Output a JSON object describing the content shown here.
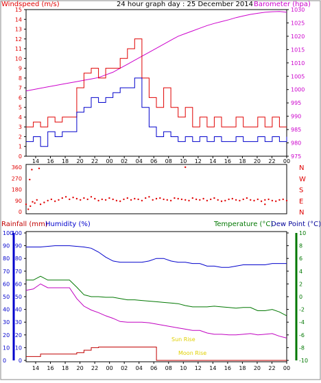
{
  "colors": {
    "wind": "#e00000",
    "gust_low": "#0000cc",
    "baro": "#cc00cc",
    "rain": "#c00000",
    "humidity": "#c000c0",
    "temperature": "#007700",
    "dewpoint": "#000099",
    "sun_moon": "#e0d000",
    "axis_left_top": "#e00000",
    "axis_right_top": "#cc00cc",
    "axis_left_bottom": "#0000cc",
    "axis_right_bottom": "#007700"
  },
  "chart_data": [
    {
      "type": "line",
      "panel": "wind-barometer",
      "title": "24 hour graph day : 25 December 2014",
      "ylabel_left": "Windspeed (m/s)",
      "ylabel_right": "Barometer (hpa)",
      "y_left_ticks": [
        "0",
        "1",
        "2",
        "3",
        "4",
        "5",
        "6",
        "7",
        "8",
        "9",
        "10",
        "11",
        "12",
        "13",
        "14",
        "15"
      ],
      "y_right_ticks": [
        "975",
        "980",
        "985",
        "990",
        "995",
        "1000",
        "1005",
        "1010",
        "1015",
        "1020",
        "1025",
        "1030"
      ],
      "x_ticks": [
        "14",
        "16",
        "18",
        "20",
        "22",
        "00",
        "02",
        "04",
        "06",
        "08",
        "10",
        "12",
        "14",
        "16",
        "18",
        "20",
        "22",
        "00"
      ],
      "ylim_left": [
        0,
        15
      ],
      "ylim_right": [
        975,
        1030
      ],
      "series": [
        {
          "name": "Barometer",
          "axis": "right",
          "x": [
            0,
            1,
            2,
            3,
            4,
            5,
            6,
            7,
            8,
            9,
            10,
            11,
            12,
            13,
            14,
            15,
            16,
            17,
            18,
            19,
            20,
            21,
            22,
            23,
            24,
            25,
            26,
            27,
            28,
            29,
            30,
            31,
            32,
            33,
            34,
            35,
            36
          ],
          "values": [
            999.5,
            1000,
            1000.5,
            1001,
            1001.5,
            1002,
            1002.5,
            1003,
            1003.5,
            1004,
            1004.5,
            1005.5,
            1006.5,
            1008,
            1009.5,
            1011,
            1012.5,
            1014,
            1015.5,
            1017,
            1018.5,
            1020,
            1021,
            1022,
            1023,
            1024,
            1024.8,
            1025.5,
            1026.2,
            1027,
            1027.6,
            1028.2,
            1028.6,
            1029,
            1029.2,
            1029.3,
            1029
          ]
        },
        {
          "name": "Wind gust",
          "axis": "left",
          "x": [
            0,
            1,
            2,
            3,
            4,
            5,
            6,
            7,
            8,
            9,
            10,
            11,
            12,
            13,
            14,
            15,
            16,
            17,
            18,
            19,
            20,
            21,
            22,
            23,
            24,
            25,
            26,
            27,
            28,
            29,
            30,
            31,
            32,
            33,
            34,
            35,
            36
          ],
          "values": [
            3,
            3.5,
            3,
            4,
            3.5,
            4,
            4,
            7,
            8.5,
            9,
            8,
            9,
            9,
            10,
            11,
            12,
            8,
            6,
            5,
            7,
            5,
            4,
            5,
            3,
            4,
            3,
            4,
            3,
            3,
            4,
            3,
            3,
            4,
            3,
            4,
            3,
            3
          ]
        },
        {
          "name": "Wind average",
          "axis": "left",
          "x": [
            0,
            1,
            2,
            3,
            4,
            5,
            6,
            7,
            8,
            9,
            10,
            11,
            12,
            13,
            14,
            15,
            16,
            17,
            18,
            19,
            20,
            21,
            22,
            23,
            24,
            25,
            26,
            27,
            28,
            29,
            30,
            31,
            32,
            33,
            34,
            35,
            36
          ],
          "values": [
            1.5,
            2,
            1,
            2.5,
            2,
            2.5,
            2.5,
            4.5,
            5,
            6,
            5.5,
            6,
            6.5,
            7,
            7,
            8,
            5,
            3,
            2,
            2.5,
            2,
            1.5,
            2,
            1.5,
            2,
            1.5,
            2,
            1.5,
            1.5,
            2,
            1.5,
            1.5,
            2,
            1.5,
            2,
            1.5,
            2
          ]
        }
      ]
    },
    {
      "type": "scatter",
      "panel": "wind-direction",
      "y_left_ticks": [
        "360",
        "270",
        "180",
        "90",
        "0"
      ],
      "y_right_ticks": [
        "N",
        "W",
        "S",
        "E",
        "N"
      ],
      "ylim": [
        0,
        360
      ],
      "series": [
        {
          "name": "Wind direction",
          "x": [
            0,
            0.3,
            0.6,
            0.9,
            1.2,
            1.5,
            2,
            2.5,
            3,
            3.5,
            4,
            4.5,
            5,
            5.5,
            6,
            6.5,
            7,
            7.5,
            8,
            8.5,
            9,
            9.5,
            10,
            10.5,
            11,
            11.5,
            12,
            12.5,
            13,
            13.5,
            14,
            14.5,
            15,
            15.5,
            16,
            16.5,
            17,
            17.5,
            18,
            18.5,
            19,
            19.5,
            20,
            20.5,
            21,
            21.5,
            22,
            22.5,
            23,
            23.5,
            24,
            24.5,
            25,
            25.5,
            26,
            26.5,
            27,
            27.5,
            28,
            28.5,
            29,
            29.5,
            30,
            30.5,
            31,
            31.5,
            32,
            32.5,
            33,
            33.5,
            34,
            34.5,
            35,
            35.5,
            36,
            1.8,
            0.5,
            0.8,
            22,
            33
          ],
          "values": [
            60,
            20,
            45,
            80,
            70,
            95,
            60,
            75,
            90,
            100,
            85,
            95,
            110,
            120,
            100,
            115,
            105,
            95,
            110,
            100,
            120,
            105,
            90,
            100,
            95,
            110,
            100,
            90,
            85,
            100,
            110,
            95,
            105,
            100,
            90,
            110,
            120,
            95,
            105,
            110,
            100,
            95,
            90,
            110,
            105,
            100,
            95,
            90,
            110,
            100,
            95,
            105,
            90,
            100,
            110,
            95,
            85,
            90,
            100,
            105,
            95,
            90,
            100,
            110,
            95,
            90,
            100,
            85,
            95,
            100,
            90,
            85,
            95,
            100,
            90,
            350,
            260,
            340,
            360,
            60
          ]
        }
      ]
    },
    {
      "type": "line",
      "panel": "rain-humidity-temp",
      "ylabel_left_1": "Rainfall (mm)",
      "ylabel_left_2": "Humidity (%)",
      "ylabel_right_1": "Temperature (°C)",
      "ylabel_right_2": "Dew Point (°C)",
      "y_left_ticks": [
        "0",
        "10",
        "20",
        "30",
        "40",
        "50",
        "60",
        "70",
        "80",
        "90",
        "100"
      ],
      "y_right_ticks": [
        "-10",
        "-8",
        "-6",
        "-4",
        "-2",
        "0",
        "2",
        "4",
        "6",
        "8",
        "10"
      ],
      "x_ticks": [
        "14",
        "16",
        "18",
        "20",
        "22",
        "00",
        "02",
        "04",
        "06",
        "08",
        "10",
        "12",
        "14",
        "16",
        "18",
        "20",
        "22",
        "00"
      ],
      "ylim_left": [
        0,
        100
      ],
      "ylim_right": [
        -10,
        10
      ],
      "annotations": [
        "Sun Rise",
        "Moon Rise"
      ],
      "series": [
        {
          "name": "Humidity",
          "axis": "left",
          "x": [
            0,
            2,
            4,
            5,
            6,
            8,
            9,
            10,
            11,
            12,
            13,
            14,
            15,
            16,
            17,
            18,
            19,
            20,
            21,
            22,
            23,
            24,
            25,
            26,
            27,
            28,
            29,
            30,
            31,
            32,
            33,
            34,
            35,
            36
          ],
          "values": [
            89,
            89,
            90,
            90,
            90,
            89,
            88,
            85,
            81,
            78,
            77,
            77,
            77,
            77,
            78,
            80,
            80,
            78,
            77,
            77,
            76,
            76,
            74,
            74,
            73,
            73,
            74,
            75,
            75,
            75,
            75,
            76,
            76,
            76
          ]
        },
        {
          "name": "Temperature",
          "axis": "right",
          "x": [
            0,
            1,
            2,
            3,
            4,
            5,
            6,
            7,
            8,
            9,
            10,
            11,
            12,
            13,
            14,
            15,
            16,
            17,
            18,
            19,
            20,
            21,
            22,
            23,
            24,
            25,
            26,
            27,
            28,
            29,
            30,
            31,
            32,
            33,
            34,
            35,
            36
          ],
          "values": [
            2.6,
            2.6,
            3.2,
            2.6,
            2.6,
            2.6,
            2.6,
            1.5,
            0.3,
            0,
            0,
            -0.1,
            -0.1,
            -0.3,
            -0.5,
            -0.5,
            -0.6,
            -0.7,
            -0.8,
            -0.9,
            -1,
            -1.1,
            -1.4,
            -1.6,
            -1.6,
            -1.6,
            -1.5,
            -1.6,
            -1.7,
            -1.8,
            -1.7,
            -1.7,
            -2.2,
            -2.2,
            -2,
            -2.4,
            -3
          ]
        },
        {
          "name": "Dew Point",
          "axis": "right",
          "x": [
            0,
            1,
            2,
            3,
            4,
            5,
            6,
            7,
            8,
            9,
            10,
            11,
            12,
            13,
            14,
            15,
            16,
            17,
            18,
            19,
            20,
            21,
            22,
            23,
            24,
            25,
            26,
            27,
            28,
            29,
            30,
            31,
            32,
            33,
            34,
            35,
            36
          ],
          "values": [
            1,
            1.2,
            2,
            1.4,
            1.4,
            1.4,
            1.4,
            -0.3,
            -1.5,
            -2.1,
            -2.5,
            -3,
            -3.4,
            -3.9,
            -4,
            -4,
            -4,
            -4.1,
            -4.3,
            -4.5,
            -4.7,
            -4.9,
            -5.1,
            -5.3,
            -5.3,
            -5.7,
            -5.9,
            -5.9,
            -6,
            -6,
            -5.9,
            -5.8,
            -6,
            -5.9,
            -5.8,
            -6.2,
            -6.5
          ]
        },
        {
          "name": "Rainfall",
          "axis": "left",
          "x": [
            0,
            2,
            4,
            6,
            7,
            8,
            9,
            10,
            10.01,
            18,
            18.01,
            36
          ],
          "values": [
            3,
            5,
            5,
            5,
            6,
            8,
            10,
            10.5,
            10.5,
            10.5,
            0,
            0
          ]
        }
      ]
    }
  ]
}
